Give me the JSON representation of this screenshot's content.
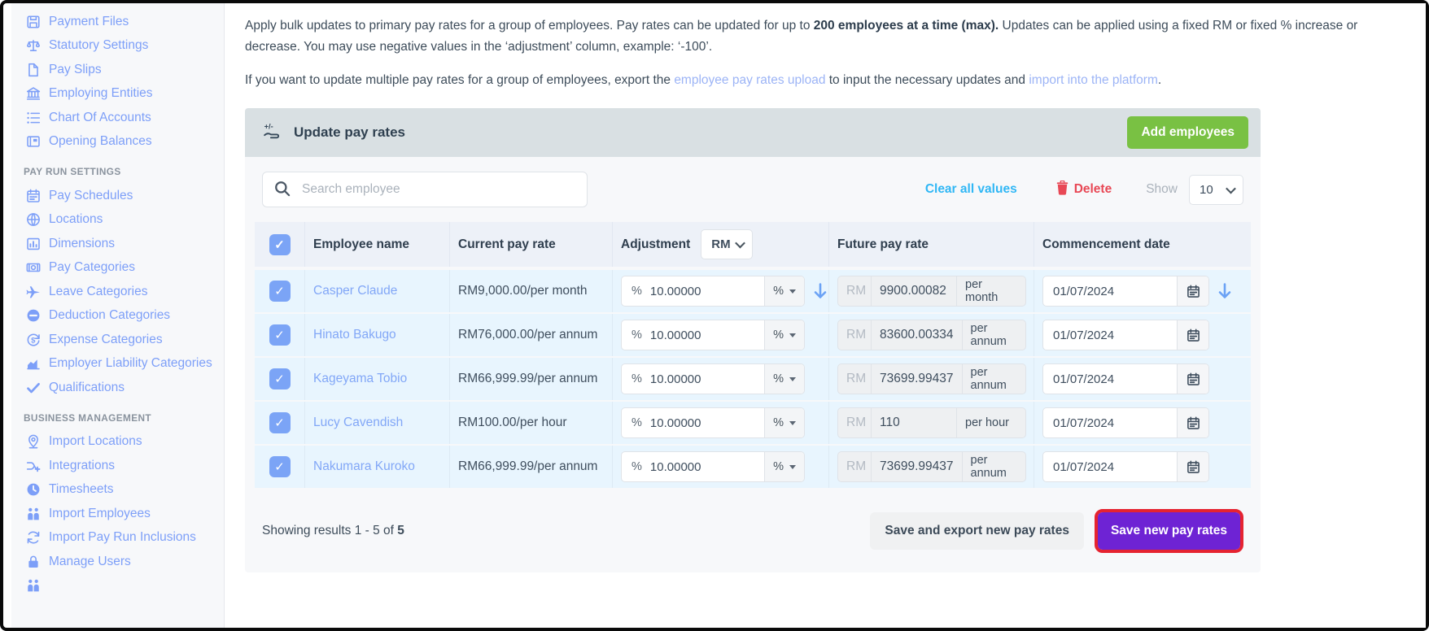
{
  "sidebar": {
    "groups": [
      {
        "heading": null,
        "items": [
          {
            "label": "Payment Files",
            "icon": "save"
          },
          {
            "label": "Statutory Settings",
            "icon": "scales"
          },
          {
            "label": "Pay Slips",
            "icon": "document"
          },
          {
            "label": "Employing Entities",
            "icon": "bank"
          },
          {
            "label": "Chart Of Accounts",
            "icon": "list"
          },
          {
            "label": "Opening Balances",
            "icon": "ledger"
          }
        ]
      },
      {
        "heading": "PAY RUN SETTINGS",
        "items": [
          {
            "label": "Pay Schedules",
            "icon": "calendar"
          },
          {
            "label": "Locations",
            "icon": "globe"
          },
          {
            "label": "Dimensions",
            "icon": "bar-chart-box"
          },
          {
            "label": "Pay Categories",
            "icon": "banknote"
          },
          {
            "label": "Leave Categories",
            "icon": "plane"
          },
          {
            "label": "Deduction Categories",
            "icon": "minus-circle"
          },
          {
            "label": "Expense Categories",
            "icon": "dollar-refresh"
          },
          {
            "label": "Employer Liability Categories",
            "icon": "area-chart"
          },
          {
            "label": "Qualifications",
            "icon": "check"
          }
        ]
      },
      {
        "heading": "BUSINESS MANAGEMENT",
        "items": [
          {
            "label": "Import Locations",
            "icon": "map-pin"
          },
          {
            "label": "Integrations",
            "icon": "branch"
          },
          {
            "label": "Timesheets",
            "icon": "clock"
          },
          {
            "label": "Import Employees",
            "icon": "people"
          },
          {
            "label": "Import Pay Run Inclusions",
            "icon": "refresh"
          },
          {
            "label": "Manage Users",
            "icon": "lock"
          },
          {
            "label": "",
            "icon": "people"
          }
        ]
      }
    ]
  },
  "intro": {
    "p1_before": "Apply bulk updates to primary pay rates for a group of employees. Pay rates can be updated for up to ",
    "p1_bold": "200 employees at a time (max).",
    "p1_after": " Updates can be applied using a fixed RM or fixed % increase or decrease. You may use negative values in the ‘adjustment’ column, example: ‘-100’.",
    "p2_before": "If you want to update multiple pay rates for a group of employees, export the ",
    "p2_link1": "employee pay rates upload",
    "p2_mid": " to input the necessary updates and ",
    "p2_link2": "import into the platform",
    "p2_after": "."
  },
  "panel": {
    "title": "Update pay rates",
    "add_button": "Add employees",
    "search_placeholder": "Search employee",
    "clear_all": "Clear all values",
    "delete": "Delete",
    "show_label": "Show",
    "show_value": "10"
  },
  "table": {
    "columns": {
      "employee": "Employee name",
      "current": "Current pay rate",
      "adjustment": "Adjustment",
      "adjustment_unit": "RM",
      "future": "Future pay rate",
      "commencement": "Commencement date"
    },
    "adjustment_prefix": "%",
    "adjustment_suffix": "%",
    "future_prefix": "RM",
    "rows": [
      {
        "checked": true,
        "name": "Casper Claude",
        "current": "RM9,000.00/per month",
        "adjustment": "10.00000",
        "future": "9900.00082",
        "unit": "per month",
        "date": "01/07/2024",
        "arrows": true
      },
      {
        "checked": true,
        "name": "Hinato Bakugo",
        "current": "RM76,000.00/per annum",
        "adjustment": "10.00000",
        "future": "83600.00334",
        "unit": "per annum",
        "date": "01/07/2024",
        "arrows": false
      },
      {
        "checked": true,
        "name": "Kageyama Tobio",
        "current": "RM66,999.99/per annum",
        "adjustment": "10.00000",
        "future": "73699.99437",
        "unit": "per annum",
        "date": "01/07/2024",
        "arrows": false
      },
      {
        "checked": true,
        "name": "Lucy Cavendish",
        "current": "RM100.00/per hour",
        "adjustment": "10.00000",
        "future": "110",
        "unit": "per hour",
        "date": "01/07/2024",
        "arrows": false
      },
      {
        "checked": true,
        "name": "Nakumara Kuroko",
        "current": "RM66,999.99/per annum",
        "adjustment": "10.00000",
        "future": "73699.99437",
        "unit": "per annum",
        "date": "01/07/2024",
        "arrows": false
      }
    ]
  },
  "footer": {
    "showing_before": "Showing results 1 - 5 of ",
    "showing_total": "5",
    "save_export": "Save and export new pay rates",
    "save": "Save new pay rates"
  },
  "colors": {
    "sidebar_link": "#7d9ff8",
    "panel_header_bg": "#d9e0e3",
    "green_button": "#79c143",
    "purple_button": "#6e23d4",
    "highlight_ring": "#e52330",
    "accent_cyan": "#30b7f5",
    "danger_red": "#e84855",
    "checkbox_blue": "#7ba4f6",
    "row_bg": "#e8f5fe",
    "header_row_bg": "#edf1f8",
    "arrow_blue": "#6ba2f5"
  }
}
